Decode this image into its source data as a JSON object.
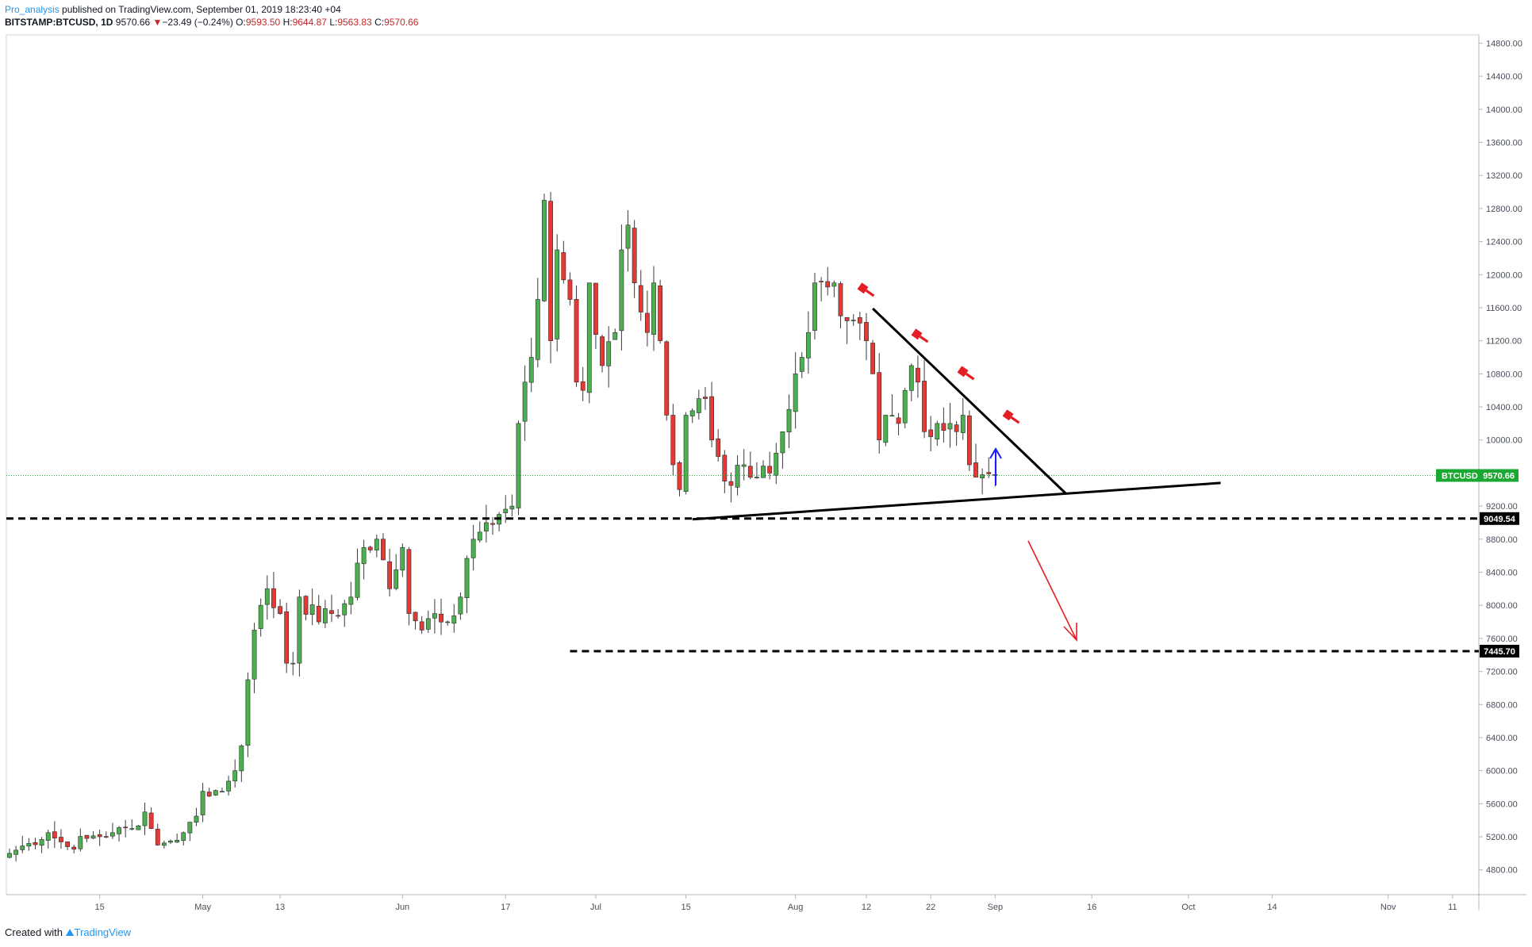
{
  "header": {
    "author": "Pro_analysis",
    "published_text": "published on TradingView.com, September 01, 2019 18:23:40 +04",
    "symbol": "BITSTAMP:BTCUSD, 1D",
    "last": "9570.66",
    "change_arrow": "▼",
    "change": "−23.49 (−0.24%)",
    "o_label": "O:",
    "o_val": "9593.50",
    "h_label": "H:",
    "h_val": "9644.87",
    "l_label": "L:",
    "l_val": "9563.83",
    "c_label": "C:",
    "c_val": "9570.66"
  },
  "footer": {
    "created": "Created with",
    "brand": "TradingView"
  },
  "colors": {
    "up": "#26a69a",
    "up_fill": "#4caf50",
    "down": "#e53935",
    "label_green": "#1aa832",
    "accent_red": "#e31e24",
    "arrow_blue": "#1a1aff"
  },
  "chart_data": {
    "type": "candlestick",
    "ylim": [
      4500,
      14900
    ],
    "y_ticks": [
      "4800.00",
      "5200.00",
      "5600.00",
      "6000.00",
      "6400.00",
      "6800.00",
      "7200.00",
      "7600.00",
      "8000.00",
      "8400.00",
      "8800.00",
      "9200.00",
      "9600.00",
      "10000.00",
      "10400.00",
      "10800.00",
      "11200.00",
      "11600.00",
      "12000.00",
      "12400.00",
      "12800.00",
      "13200.00",
      "13600.00",
      "14000.00",
      "14400.00",
      "14800.00"
    ],
    "x_ticks": [
      {
        "label": "15",
        "d": 14
      },
      {
        "label": "May",
        "d": 30
      },
      {
        "label": "13",
        "d": 42
      },
      {
        "label": "Jun",
        "d": 61
      },
      {
        "label": "17",
        "d": 77
      },
      {
        "label": "Jul",
        "d": 91
      },
      {
        "label": "15",
        "d": 105
      },
      {
        "label": "Aug",
        "d": 122
      },
      {
        "label": "12",
        "d": 133
      },
      {
        "label": "22",
        "d": 143
      },
      {
        "label": "Sep",
        "d": 153
      },
      {
        "label": "16",
        "d": 168
      },
      {
        "label": "Oct",
        "d": 183
      },
      {
        "label": "14",
        "d": 196
      },
      {
        "label": "Nov",
        "d": 214
      },
      {
        "label": "11",
        "d": 224
      }
    ],
    "anchors": [
      {
        "d": 0,
        "p": 5000
      },
      {
        "d": 3,
        "p": 5120
      },
      {
        "d": 6,
        "p": 5250
      },
      {
        "d": 9,
        "p": 5080
      },
      {
        "d": 12,
        "p": 5180
      },
      {
        "d": 16,
        "p": 5250
      },
      {
        "d": 19,
        "p": 5300
      },
      {
        "d": 21,
        "p": 5500
      },
      {
        "d": 22,
        "p": 5300
      },
      {
        "d": 23,
        "p": 5100
      },
      {
        "d": 25,
        "p": 5150
      },
      {
        "d": 27,
        "p": 5250
      },
      {
        "d": 29,
        "p": 5450
      },
      {
        "d": 30,
        "p": 5750
      },
      {
        "d": 33,
        "p": 5750
      },
      {
        "d": 35,
        "p": 6000
      },
      {
        "d": 36,
        "p": 6300
      },
      {
        "d": 37,
        "p": 7100
      },
      {
        "d": 38,
        "p": 7700
      },
      {
        "d": 39,
        "p": 8000
      },
      {
        "d": 40,
        "p": 8200
      },
      {
        "d": 42,
        "p": 7900
      },
      {
        "d": 43,
        "p": 7300
      },
      {
        "d": 44,
        "p": 7300
      },
      {
        "d": 45,
        "p": 8100
      },
      {
        "d": 48,
        "p": 7800
      },
      {
        "d": 50,
        "p": 7900
      },
      {
        "d": 53,
        "p": 8100
      },
      {
        "d": 55,
        "p": 8700
      },
      {
        "d": 57,
        "p": 8800
      },
      {
        "d": 58,
        "p": 8550
      },
      {
        "d": 59,
        "p": 8200
      },
      {
        "d": 61,
        "p": 8700
      },
      {
        "d": 62,
        "p": 7900
      },
      {
        "d": 64,
        "p": 7700
      },
      {
        "d": 66,
        "p": 7900
      },
      {
        "d": 68,
        "p": 7800
      },
      {
        "d": 70,
        "p": 8100
      },
      {
        "d": 72,
        "p": 8800
      },
      {
        "d": 74,
        "p": 9000
      },
      {
        "d": 76,
        "p": 9100
      },
      {
        "d": 78,
        "p": 9200
      },
      {
        "d": 79,
        "p": 10200
      },
      {
        "d": 80,
        "p": 10700
      },
      {
        "d": 81,
        "p": 11000
      },
      {
        "d": 82,
        "p": 11700
      },
      {
        "d": 83,
        "p": 12900
      },
      {
        "d": 84,
        "p": 11200
      },
      {
        "d": 85,
        "p": 12300
      },
      {
        "d": 87,
        "p": 11700
      },
      {
        "d": 88,
        "p": 10700
      },
      {
        "d": 89,
        "p": 10600
      },
      {
        "d": 90,
        "p": 11900
      },
      {
        "d": 92,
        "p": 10900
      },
      {
        "d": 94,
        "p": 11300
      },
      {
        "d": 95,
        "p": 12300
      },
      {
        "d": 96,
        "p": 12600
      },
      {
        "d": 97,
        "p": 11900
      },
      {
        "d": 99,
        "p": 11300
      },
      {
        "d": 100,
        "p": 11900
      },
      {
        "d": 101,
        "p": 11200
      },
      {
        "d": 102,
        "p": 10300
      },
      {
        "d": 103,
        "p": 9700
      },
      {
        "d": 104,
        "p": 9400
      },
      {
        "d": 105,
        "p": 10300
      },
      {
        "d": 107,
        "p": 10500
      },
      {
        "d": 108,
        "p": 10500
      },
      {
        "d": 109,
        "p": 10000
      },
      {
        "d": 110,
        "p": 9800
      },
      {
        "d": 112,
        "p": 9450
      },
      {
        "d": 114,
        "p": 9700
      },
      {
        "d": 116,
        "p": 9550
      },
      {
        "d": 118,
        "p": 9600
      },
      {
        "d": 120,
        "p": 10100
      },
      {
        "d": 122,
        "p": 10800
      },
      {
        "d": 123,
        "p": 11000
      },
      {
        "d": 124,
        "p": 11300
      },
      {
        "d": 125,
        "p": 11900
      },
      {
        "d": 127,
        "p": 11850
      },
      {
        "d": 128,
        "p": 11900
      },
      {
        "d": 129,
        "p": 11500
      },
      {
        "d": 131,
        "p": 11450
      },
      {
        "d": 133,
        "p": 11200
      },
      {
        "d": 134,
        "p": 10800
      },
      {
        "d": 135,
        "p": 10000
      },
      {
        "d": 136,
        "p": 10300
      },
      {
        "d": 138,
        "p": 10200
      },
      {
        "d": 139,
        "p": 10600
      },
      {
        "d": 140,
        "p": 10900
      },
      {
        "d": 141,
        "p": 10700
      },
      {
        "d": 142,
        "p": 10100
      },
      {
        "d": 144,
        "p": 10200
      },
      {
        "d": 146,
        "p": 10200
      },
      {
        "d": 147,
        "p": 10100
      },
      {
        "d": 148,
        "p": 10300
      },
      {
        "d": 149,
        "p": 9700
      },
      {
        "d": 150,
        "p": 9550
      },
      {
        "d": 151,
        "p": 9580
      },
      {
        "d": 152,
        "p": 9590
      },
      {
        "d": 153,
        "p": 9570.66
      }
    ],
    "last_price": {
      "label": "BTCUSD",
      "value": "9570.66",
      "price": 9570.66
    },
    "levels": [
      {
        "value": "9049.54",
        "price": 9049.54,
        "d_start": -1
      },
      {
        "value": "7445.70",
        "price": 7445.7,
        "d_start": 87
      }
    ],
    "lines": [
      {
        "name": "descending-resistance",
        "p1": {
          "d": 134,
          "p": 11590
        },
        "p2": {
          "d": 164,
          "p": 9350
        }
      },
      {
        "name": "ascending-support",
        "p1": {
          "d": 106,
          "p": 9040
        },
        "p2": {
          "d": 188,
          "p": 9480
        }
      }
    ]
  }
}
